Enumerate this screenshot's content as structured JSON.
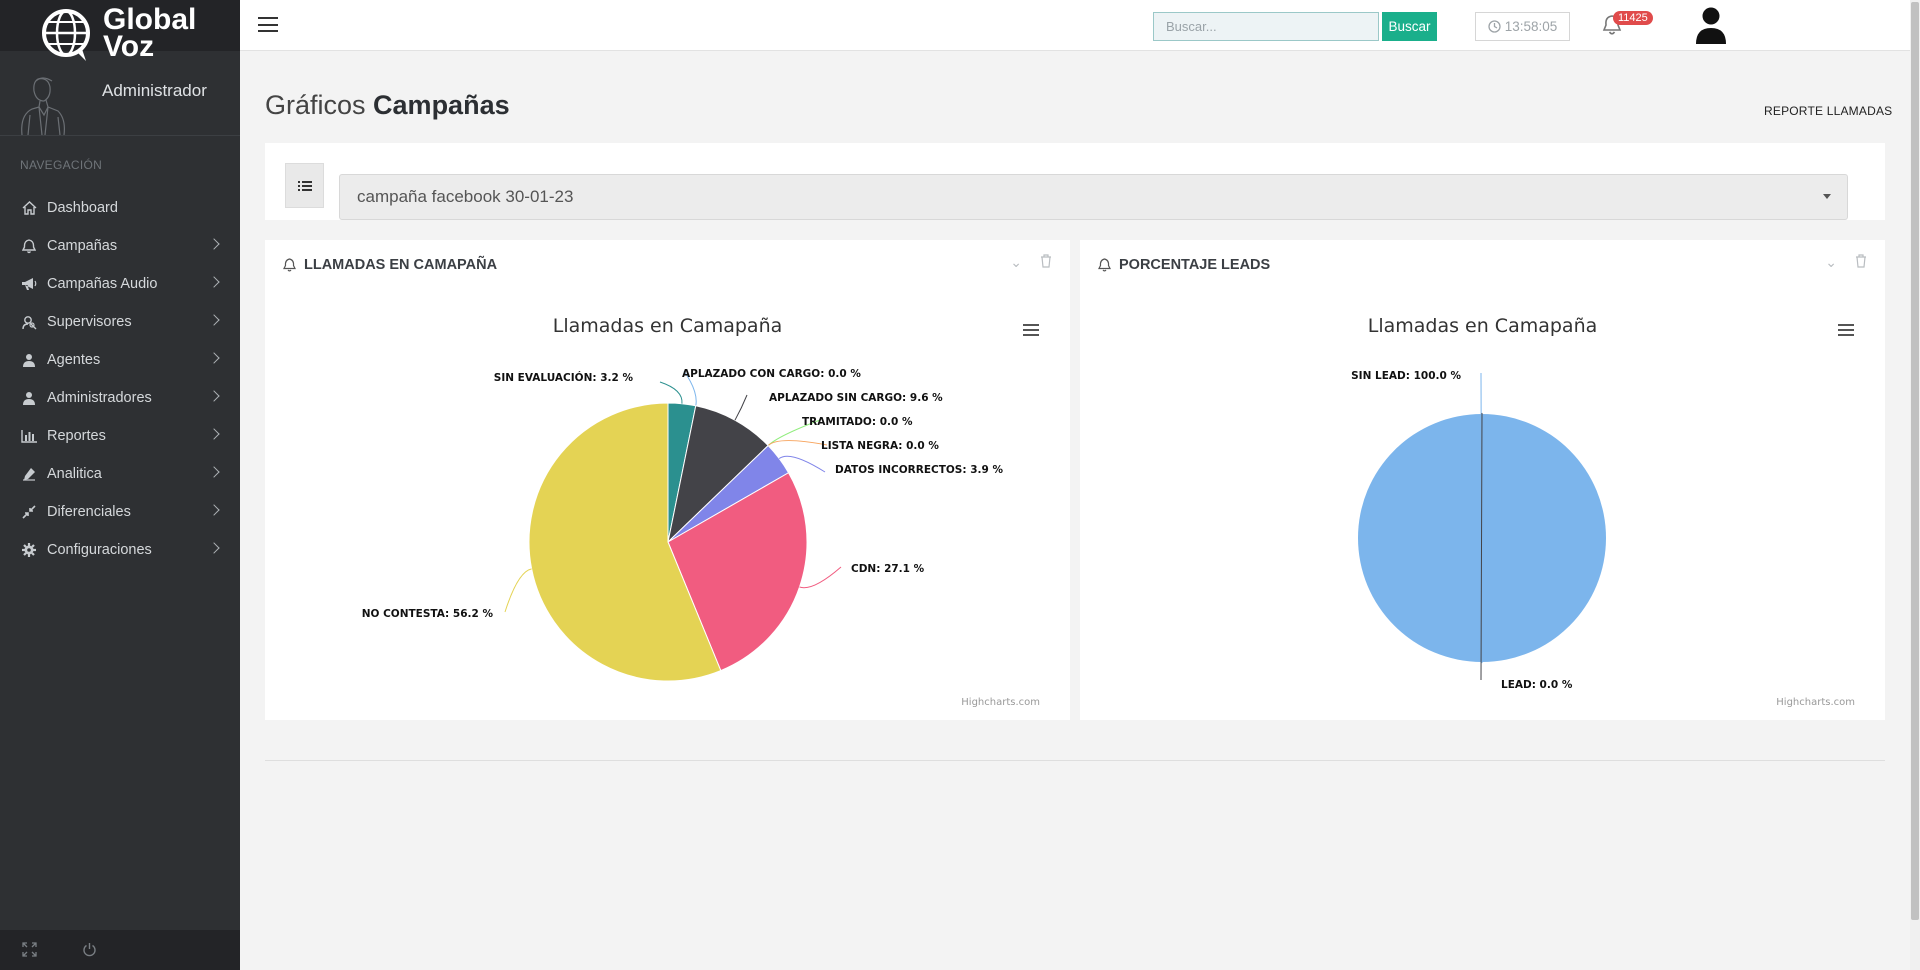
{
  "brand": {
    "line1": "Global",
    "line2": "Voz"
  },
  "user": {
    "role": "Administrador"
  },
  "sidebar": {
    "heading": "NAVEGACIÓN",
    "items": [
      {
        "label": "Dashboard",
        "icon": "home-icon",
        "has_children": false
      },
      {
        "label": "Campañas",
        "icon": "bell-icon",
        "has_children": true
      },
      {
        "label": "Campañas Audio",
        "icon": "bullhorn-icon",
        "has_children": true
      },
      {
        "label": "Supervisores",
        "icon": "user-search-icon",
        "has_children": true
      },
      {
        "label": "Agentes",
        "icon": "users-icon",
        "has_children": true
      },
      {
        "label": "Administradores",
        "icon": "user-icon",
        "has_children": true
      },
      {
        "label": "Reportes",
        "icon": "bar-chart-icon",
        "has_children": true
      },
      {
        "label": "Analitica",
        "icon": "eyedropper-icon",
        "has_children": true
      },
      {
        "label": "Diferenciales",
        "icon": "compress-icon",
        "has_children": true
      },
      {
        "label": "Configuraciones",
        "icon": "gear-icon",
        "has_children": true
      }
    ]
  },
  "topbar": {
    "search_placeholder": "Buscar...",
    "search_button": "Buscar",
    "clock": "13:58:05",
    "notifications": "11425"
  },
  "page": {
    "title_light": "Gráficos",
    "title_bold": "Campañas",
    "report_link": "REPORTE LLAMADAS"
  },
  "filter": {
    "selected_campaign": "campaña facebook 30-01-23"
  },
  "panels": [
    {
      "heading": "LLAMADAS EN CAMAPAÑA",
      "credits": "Highcharts.com"
    },
    {
      "heading": "PORCENTAJE LEADS",
      "credits": "Highcharts.com"
    }
  ],
  "chart_data": [
    {
      "type": "pie",
      "title": "Llamadas en Camapaña",
      "slices": [
        {
          "name": "SIN EVALUACIÓN",
          "value": 3.2,
          "label": "SIN EVALUACIÓN: 3.2 %",
          "color": "#2b908f"
        },
        {
          "name": "APLAZADO CON CARGO",
          "value": 0.0,
          "label": "APLAZADO CON CARGO: 0.0 %",
          "color": "#7cb5ec"
        },
        {
          "name": "APLAZADO SIN CARGO",
          "value": 9.6,
          "label": "APLAZADO SIN CARGO: 9.6 %",
          "color": "#434348"
        },
        {
          "name": "TRAMITADO",
          "value": 0.0,
          "label": "TRAMITADO: 0.0 %",
          "color": "#90ed7d"
        },
        {
          "name": "LISTA NEGRA",
          "value": 0.0,
          "label": "LISTA NEGRA: 0.0 %",
          "color": "#f7a35c"
        },
        {
          "name": "DATOS INCORRECTOS",
          "value": 3.9,
          "label": "DATOS INCORRECTOS: 3.9 %",
          "color": "#8085e9"
        },
        {
          "name": "CDN",
          "value": 27.1,
          "label": "CDN: 27.1 %",
          "color": "#f15c80"
        },
        {
          "name": "NO CONTESTA",
          "value": 56.2,
          "label": "NO CONTESTA: 56.2 %",
          "color": "#e4d354"
        }
      ]
    },
    {
      "type": "pie",
      "title": "Llamadas en Camapaña",
      "slices": [
        {
          "name": "SIN LEAD",
          "value": 100.0,
          "label": "SIN LEAD: 100.0 %",
          "color": "#7cb5ec"
        },
        {
          "name": "LEAD",
          "value": 0.0,
          "label": "LEAD: 0.0 %",
          "color": "#434348"
        }
      ]
    }
  ]
}
